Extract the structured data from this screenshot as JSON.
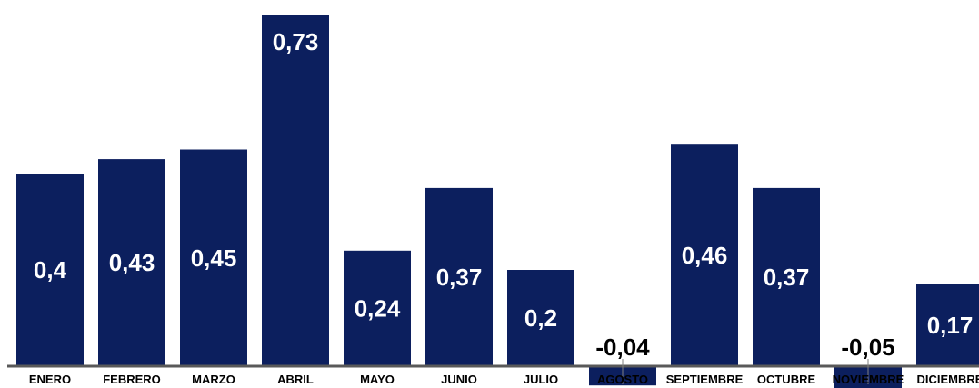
{
  "chart_data": {
    "type": "bar",
    "categories": [
      "ENERO",
      "FEBRERO",
      "MARZO",
      "ABRIL",
      "MAYO",
      "JUNIO",
      "JULIO",
      "AGOSTO",
      "SEPTIEMBRE",
      "OCTUBRE",
      "NOVIEMBRE",
      "DICIEMBRE"
    ],
    "values": [
      0.4,
      0.43,
      0.45,
      0.73,
      0.24,
      0.37,
      0.2,
      -0.04,
      0.46,
      0.37,
      -0.05,
      0.17
    ],
    "value_labels": [
      "0,4",
      "0,43",
      "0,45",
      "0,73",
      "0,24",
      "0,37",
      "0,2",
      "-0,04",
      "0,46",
      "0,37",
      "-0,05",
      "0,17"
    ],
    "title": "",
    "xlabel": "",
    "ylabel": "",
    "ylim": [
      -0.05,
      0.73
    ],
    "grid": false,
    "legend": "none",
    "colors": {
      "bar": "#0c1f5e",
      "axis": "#595959",
      "label_inside": "#ffffff",
      "label_outside": "#000000"
    }
  }
}
